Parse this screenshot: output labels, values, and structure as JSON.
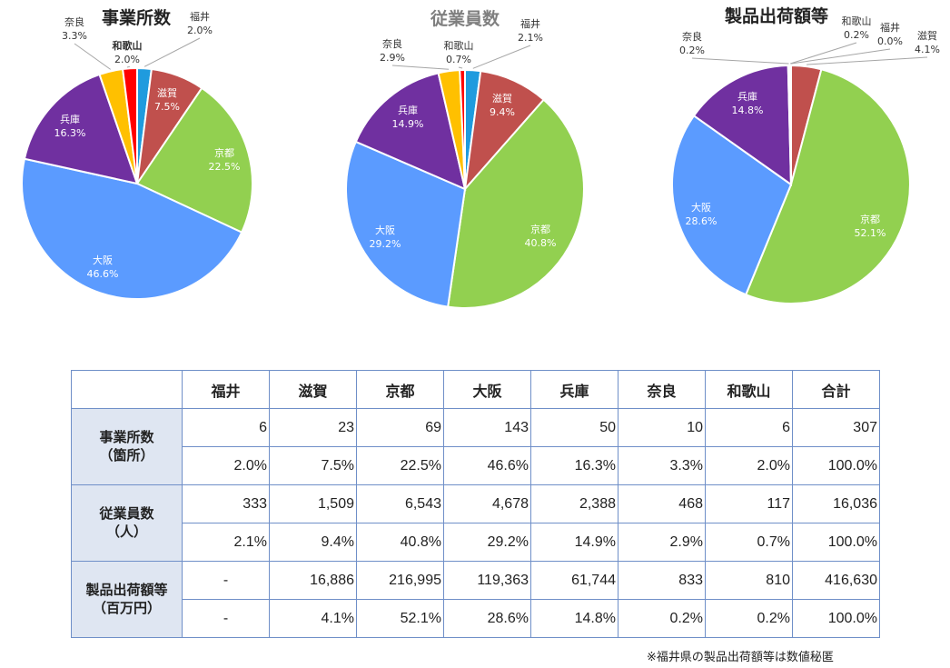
{
  "chart_data": [
    {
      "type": "pie",
      "title": "事業所数",
      "slices": [
        {
          "label": "福井",
          "value": 2.0,
          "display": "2.0%",
          "color": "#1f9bde"
        },
        {
          "label": "滋賀",
          "value": 7.5,
          "display": "7.5%",
          "color": "#c0504d"
        },
        {
          "label": "京都",
          "value": 22.5,
          "display": "22.5%",
          "color": "#92d050"
        },
        {
          "label": "大阪",
          "value": 46.6,
          "display": "46.6%",
          "color": "#5b9bff"
        },
        {
          "label": "兵庫",
          "value": 16.3,
          "display": "16.3%",
          "color": "#7030a0"
        },
        {
          "label": "奈良",
          "value": 3.3,
          "display": "3.3%",
          "color": "#ffc000"
        },
        {
          "label": "和歌山",
          "value": 2.0,
          "display": "2.0%",
          "color": "#ff0000"
        }
      ]
    },
    {
      "type": "pie",
      "title": "従業員数",
      "slices": [
        {
          "label": "福井",
          "value": 2.1,
          "display": "2.1%",
          "color": "#1f9bde"
        },
        {
          "label": "滋賀",
          "value": 9.4,
          "display": "9.4%",
          "color": "#c0504d"
        },
        {
          "label": "京都",
          "value": 40.8,
          "display": "40.8%",
          "color": "#92d050"
        },
        {
          "label": "大阪",
          "value": 29.2,
          "display": "29.2%",
          "color": "#5b9bff"
        },
        {
          "label": "兵庫",
          "value": 14.9,
          "display": "14.9%",
          "color": "#7030a0"
        },
        {
          "label": "奈良",
          "value": 2.9,
          "display": "2.9%",
          "color": "#ffc000"
        },
        {
          "label": "和歌山",
          "value": 0.7,
          "display": "0.7%",
          "color": "#ff0000"
        }
      ]
    },
    {
      "type": "pie",
      "title": "製品出荷額等",
      "slices": [
        {
          "label": "福井",
          "value": 0.0,
          "display": "0.0%",
          "color": "#1f9bde"
        },
        {
          "label": "滋賀",
          "value": 4.1,
          "display": "4.1%",
          "color": "#c0504d"
        },
        {
          "label": "京都",
          "value": 52.1,
          "display": "52.1%",
          "color": "#92d050"
        },
        {
          "label": "大阪",
          "value": 28.6,
          "display": "28.6%",
          "color": "#5b9bff"
        },
        {
          "label": "兵庫",
          "value": 14.8,
          "display": "14.8%",
          "color": "#7030a0"
        },
        {
          "label": "奈良",
          "value": 0.2,
          "display": "0.2%",
          "color": "#ffc000"
        },
        {
          "label": "和歌山",
          "value": 0.2,
          "display": "0.2%",
          "color": "#ff0000"
        }
      ]
    }
  ],
  "table": {
    "headers": [
      "福井",
      "滋賀",
      "京都",
      "大阪",
      "兵庫",
      "奈良",
      "和歌山",
      "合計"
    ],
    "groups": [
      {
        "label": [
          "事業所数",
          "（箇所）"
        ],
        "rows": [
          [
            "6",
            "23",
            "69",
            "143",
            "50",
            "10",
            "6",
            "307"
          ],
          [
            "2.0%",
            "7.5%",
            "22.5%",
            "46.6%",
            "16.3%",
            "3.3%",
            "2.0%",
            "100.0%"
          ]
        ]
      },
      {
        "label": [
          "従業員数",
          "（人）"
        ],
        "rows": [
          [
            "333",
            "1,509",
            "6,543",
            "4,678",
            "2,388",
            "468",
            "117",
            "16,036"
          ],
          [
            "2.1%",
            "9.4%",
            "40.8%",
            "29.2%",
            "14.9%",
            "2.9%",
            "0.7%",
            "100.0%"
          ]
        ]
      },
      {
        "label": [
          "製品出荷額等",
          "（百万円）"
        ],
        "rows": [
          [
            "-",
            "16,886",
            "216,995",
            "119,363",
            "61,744",
            "833",
            "810",
            "416,630"
          ],
          [
            "-",
            "4.1%",
            "52.1%",
            "28.6%",
            "14.8%",
            "0.2%",
            "0.2%",
            "100.0%"
          ]
        ]
      }
    ]
  },
  "note": "※福井県の製品出荷額等は数値秘匿"
}
